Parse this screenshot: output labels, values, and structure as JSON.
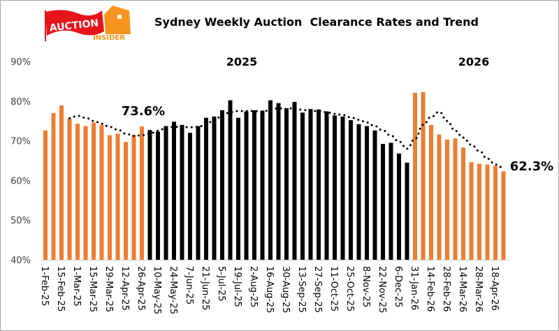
{
  "logo": {
    "word1": "AUCTION",
    "word2": "INSIDER",
    "colors": {
      "red": "#E8141B",
      "orange": "#F7941D"
    }
  },
  "chart_data": {
    "type": "bar",
    "title": "Sydney Weekly Auction  Clearance Rates and Trend",
    "year_labels": [
      "2025",
      "2026"
    ],
    "annotations": [
      "73.6%",
      "62.3%"
    ],
    "ylim": [
      40,
      90
    ],
    "yticks": [
      90,
      80,
      70,
      60,
      50,
      40
    ],
    "ytick_labels": [
      "90%",
      "80%",
      "70%",
      "60%",
      "50%",
      "40%"
    ],
    "grid": false,
    "legend": "none",
    "colors": {
      "orange": "#ED7D31",
      "black": "#000000",
      "trend": "#000000"
    },
    "tick_labels": [
      "1-Feb-25",
      "15-Feb-25",
      "1-Mar-25",
      "15-Mar-25",
      "29-Mar-25",
      "12-Apr-25",
      "26-Apr-25",
      "10-May-25",
      "24-May-25",
      "7-Jun-25",
      "21-Jun-25",
      "5-Jul-25",
      "19-Jul-25",
      "2-Aug-25",
      "16-Aug-25",
      "30-Aug-25",
      "13-Sep-25",
      "27-Sep-25",
      "11-Oct-25",
      "25-Oct-25",
      "8-Nov-25",
      "22-Nov-25",
      "6-Dec-25",
      "31-Jan-26",
      "14-Feb-26",
      "28-Feb-26",
      "14-Mar-26",
      "28-Mar-26",
      "18-Apr-26"
    ],
    "series": [
      {
        "type": "bar",
        "values": [
          72.6,
          77.0,
          78.9,
          75.6,
          74.3,
          73.7,
          74.6,
          74.0,
          71.4,
          71.8,
          69.7,
          71.5,
          73.6,
          72.7,
          72.3,
          73.7,
          74.8,
          74.0,
          72.0,
          73.7,
          75.8,
          76.1,
          77.7,
          80.2,
          75.8,
          77.4,
          77.7,
          77.6,
          80.2,
          79.5,
          78.2,
          79.8,
          77.1,
          78.0,
          77.9,
          77.4,
          76.4,
          76.1,
          75.2,
          74.2,
          73.7,
          72.6,
          69.2,
          69.5,
          66.8,
          64.5,
          82.1,
          82.3,
          74.0,
          71.6,
          70.3,
          70.6,
          68.3,
          64.6,
          64.2,
          64.0,
          63.7,
          62.3
        ],
        "color_groups": [
          "orange",
          "orange",
          "orange",
          "orange",
          "orange",
          "orange",
          "orange",
          "orange",
          "orange",
          "orange",
          "orange",
          "orange",
          "orange",
          "black",
          "black",
          "black",
          "black",
          "black",
          "black",
          "black",
          "black",
          "black",
          "black",
          "black",
          "black",
          "black",
          "black",
          "black",
          "black",
          "black",
          "black",
          "black",
          "black",
          "black",
          "black",
          "black",
          "black",
          "black",
          "black",
          "black",
          "black",
          "black",
          "black",
          "black",
          "black",
          "black",
          "orange",
          "orange",
          "orange",
          "orange",
          "orange",
          "orange",
          "orange",
          "orange",
          "orange",
          "orange",
          "orange",
          "orange"
        ]
      },
      {
        "type": "line",
        "style": "dotted",
        "values": [
          null,
          null,
          null,
          75.7,
          76.3,
          75.8,
          75.0,
          74.3,
          73.5,
          72.8,
          71.8,
          71.2,
          71.4,
          71.8,
          72.5,
          73.2,
          73.5,
          73.5,
          73.4,
          73.5,
          74.2,
          75.2,
          76.3,
          77.2,
          77.5,
          77.5,
          77.5,
          77.3,
          77.8,
          78.2,
          78.0,
          78.3,
          77.8,
          77.5,
          77.5,
          77.2,
          76.8,
          76.5,
          75.9,
          75.3,
          74.6,
          73.7,
          72.6,
          71.3,
          69.8,
          68.0,
          70.5,
          74.0,
          76.0,
          77.3,
          75.0,
          72.5,
          70.8,
          69.0,
          67.4,
          65.5,
          64.0,
          63.2
        ]
      }
    ]
  }
}
